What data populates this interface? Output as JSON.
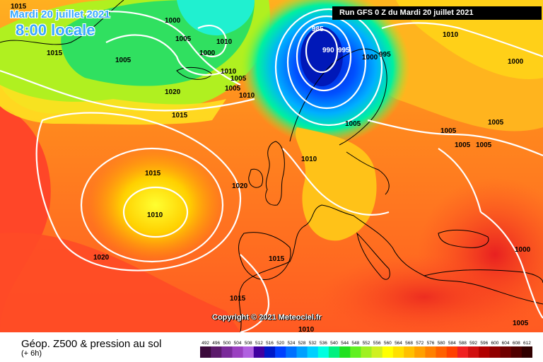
{
  "header": {
    "date_label": "Mardi 20 juillet 2021",
    "time_label": "8:00 locale",
    "run_label": "Run GFS 0 Z du Mardi 20 juillet 2021"
  },
  "copyright": "Copyright © 2021 Meteociel.fr",
  "footer": {
    "title": "Géop. Z500 & pression au sol",
    "subtitle": "(+ 6h)"
  },
  "isobar_labels": [
    "1015",
    "1000",
    "1005",
    "1010",
    "1005",
    "1000",
    "1015",
    "1005",
    "1020",
    "1005",
    "1010",
    "1010",
    "1015",
    "985",
    "990",
    "995",
    "1000",
    "995",
    "1010",
    "1000",
    "1005",
    "1005",
    "1005",
    "1005",
    "1015",
    "1010",
    "1020",
    "1010",
    "1020",
    "1015",
    "1015",
    "1000",
    "1005",
    "1010",
    "1005"
  ],
  "scale_values": [
    "492",
    "496",
    "500",
    "504",
    "508",
    "512",
    "516",
    "520",
    "524",
    "528",
    "532",
    "536",
    "540",
    "544",
    "548",
    "552",
    "556",
    "560",
    "564",
    "568",
    "572",
    "576",
    "580",
    "584",
    "588",
    "592",
    "596",
    "600",
    "604",
    "608",
    "612"
  ],
  "scale_colors": [
    "#3b0a3b",
    "#5c1a6b",
    "#7a2a9a",
    "#9a40c0",
    "#b060e0",
    "#4000a0",
    "#0018c8",
    "#0040ff",
    "#0070ff",
    "#00a0ff",
    "#00d0ff",
    "#00ffe0",
    "#00f080",
    "#20e020",
    "#60f020",
    "#a0f020",
    "#d0f020",
    "#ffff00",
    "#ffe000",
    "#ffc000",
    "#ffa000",
    "#ff8000",
    "#ff6000",
    "#ff4000",
    "#f02020",
    "#d01010",
    "#b00000",
    "#900000",
    "#700000",
    "#500000",
    "#300000"
  ],
  "colors": {
    "sea_warm": "#ff7a1e",
    "sea_hot": "#ff3a28",
    "sea_mild": "#ffb020",
    "high_core": "#ffef20",
    "low_core": "#0018c8",
    "low_ring": "#00a0ff",
    "trough": "#20e080",
    "contour": "#ffffff",
    "coast": "#000000"
  }
}
